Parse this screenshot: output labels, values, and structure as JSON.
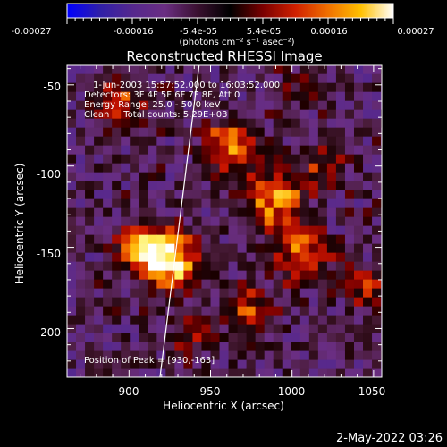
{
  "chart_data": {
    "type": "heatmap",
    "title": "Reconstructed RHESSI Image",
    "xlabel": "Heliocentric X (arcsec)",
    "ylabel": "Heliocentric Y (arcsec)",
    "xlim": [
      862,
      1055
    ],
    "ylim": [
      -230,
      -38
    ],
    "x_ticks": [
      900,
      950,
      1000,
      1050
    ],
    "y_ticks": [
      -200,
      -150,
      -100,
      -50
    ],
    "colorbar": {
      "range": [
        -0.00027,
        0.00027
      ],
      "tick_labels": [
        "-0.00027",
        "-0.00016",
        "-5.4e-05",
        "5.4e-05",
        "0.00016",
        "0.00027"
      ],
      "unit_label": "(photons cm⁻² s⁻¹ asec⁻²)"
    },
    "colormap": [
      "#0000ff",
      "#2f1fa8",
      "#55288e",
      "#6a2e82",
      "#4a1c3a",
      "#1a0000",
      "#7a0000",
      "#c81400",
      "#f06400",
      "#ffb000",
      "#fff060",
      "#ffffff"
    ],
    "info_lines": [
      "1-Jun-2003 15:57:52.000 to 16:03:52.000",
      "Detectors: 3F 4F 5F 6F 7F 8F, Att 0",
      "Energy Range: 25.0 - 50.0 keV",
      "Clean     Total counts: 5.29E+03"
    ],
    "peak_label": "Position of Peak = [930,-163]",
    "peak": {
      "x": 930,
      "y": -163
    },
    "limb_line": [
      {
        "x": 919,
        "y": -230
      },
      {
        "x": 943,
        "y": -38
      }
    ],
    "blobs": [
      {
        "x": 925,
        "y": -158,
        "sigma": 12,
        "amp": 1.25
      },
      {
        "x": 907,
        "y": -150,
        "sigma": 10,
        "amp": 0.75
      },
      {
        "x": 963,
        "y": -88,
        "sigma": 11,
        "amp": 0.95
      },
      {
        "x": 990,
        "y": -120,
        "sigma": 12,
        "amp": 0.85
      },
      {
        "x": 1005,
        "y": -155,
        "sigma": 12,
        "amp": 0.7
      },
      {
        "x": 975,
        "y": -190,
        "sigma": 10,
        "amp": 0.65
      },
      {
        "x": 1020,
        "y": -100,
        "sigma": 9,
        "amp": 0.5
      },
      {
        "x": 895,
        "y": -60,
        "sigma": 12,
        "amp": 0.55
      },
      {
        "x": 1045,
        "y": -175,
        "sigma": 9,
        "amp": 0.5
      },
      {
        "x": 940,
        "y": -205,
        "sigma": 10,
        "amp": 0.35
      },
      {
        "x": 1000,
        "y": -55,
        "sigma": 10,
        "amp": 0.25
      }
    ]
  },
  "footer_date": "2-May-2022 03:26"
}
